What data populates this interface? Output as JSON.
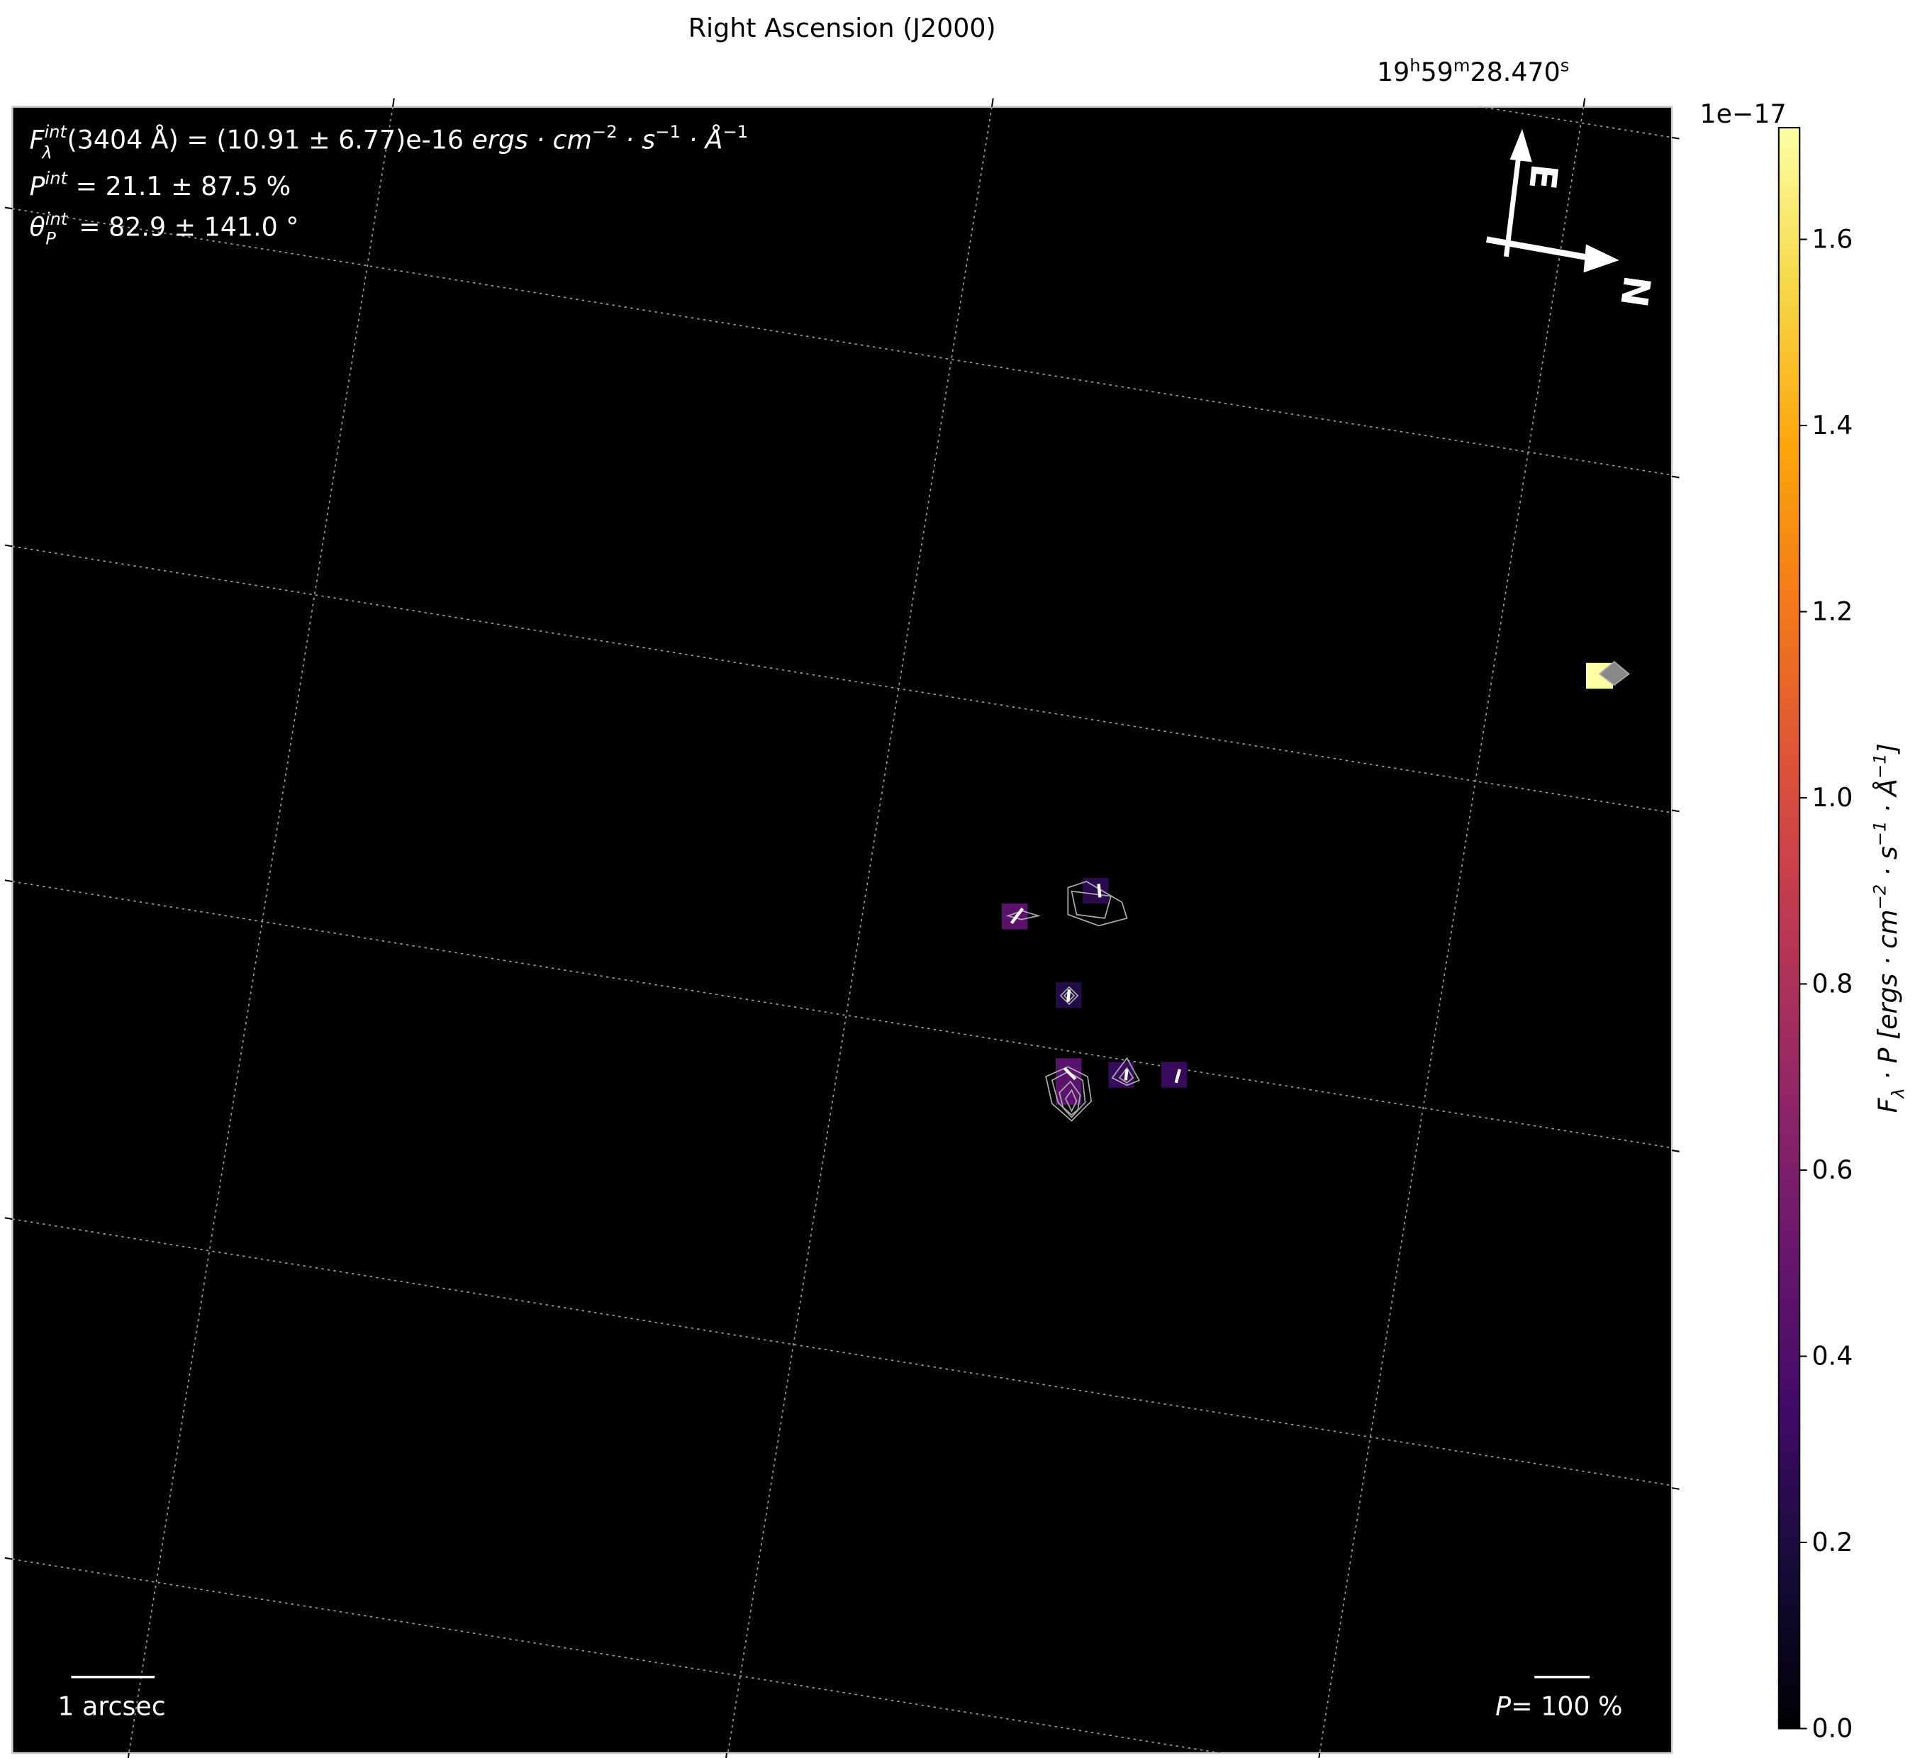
{
  "chart_data": {
    "type": "heatmap",
    "title": "",
    "xlabel": "Right Ascension (J2000)",
    "x_tick_labels": [
      {
        "h": "19",
        "m": "59",
        "s": "28.470"
      }
    ],
    "colormap": "inferno",
    "colorbar": {
      "label": "F_λ · P [ergs · cm⁻² · s⁻¹ · Å⁻¹]",
      "label_parts": {
        "F": "F",
        "sub": "λ",
        "rest": " · P [ergs · cm",
        "e1": "−2",
        "m1": " · s",
        "e2": "−1",
        "m2": " · Å",
        "e3": "−1",
        "end": "]"
      },
      "offset_text": "1e−17",
      "range": [
        0.0,
        1.72
      ],
      "ticks": [
        "0.0",
        "0.2",
        "0.4",
        "0.6",
        "0.8",
        "1.0",
        "1.2",
        "1.4",
        "1.6"
      ]
    },
    "pixel_values": [
      0.45,
      0.25,
      0.22,
      0.45,
      0.3,
      0.3,
      1.72
    ],
    "grid": true,
    "background": "#000000",
    "annotations": {
      "flux": {
        "sym": "F",
        "sub": "λ",
        "sup": "int",
        "text": "(3404 Å) = (10.91 ± 6.77)e-16 ",
        "units": "ergs · cm",
        "e1": "−2",
        "u2": " · s",
        "e2": "−1",
        "u3": " · Å",
        "e3": "−1"
      },
      "pol": {
        "sym": "P",
        "sup": "int",
        "text": " = 21.1 ± 87.5 %"
      },
      "angle": {
        "sym": "θ",
        "sub": "P",
        "sup": "int",
        "text": " = 82.9 ± 141.0 °"
      },
      "scale_bar": "1 arcsec",
      "pol_scale": {
        "sym": "P",
        "text": "= 100 %"
      },
      "compass": {
        "east": "E",
        "north": "N"
      }
    }
  }
}
